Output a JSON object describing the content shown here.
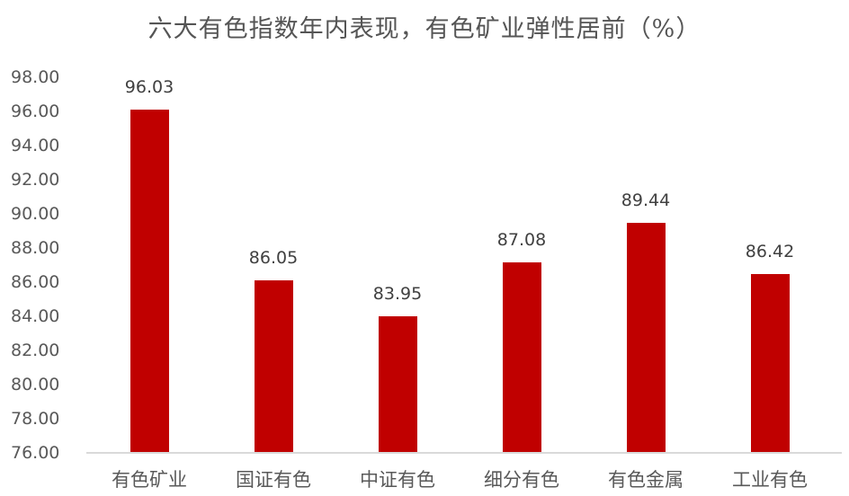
{
  "chart_data": {
    "type": "bar",
    "title": "六大有色指数年内表现，有色矿业弹性居前（%）",
    "xlabel": "",
    "ylabel": "",
    "categories": [
      "有色矿业",
      "国证有色",
      "中证有色",
      "细分有色",
      "有色金属",
      "工业有色"
    ],
    "values": [
      96.03,
      86.05,
      83.95,
      87.08,
      89.44,
      86.42
    ],
    "value_labels": [
      "96.03",
      "86.05",
      "83.95",
      "87.08",
      "89.44",
      "86.42"
    ],
    "ylim": [
      76,
      98
    ],
    "yticks": [
      "98.00",
      "96.00",
      "94.00",
      "92.00",
      "90.00",
      "88.00",
      "86.00",
      "84.00",
      "82.00",
      "80.00",
      "78.00",
      "76.00"
    ],
    "grid": false,
    "legend": "none",
    "bar_color": "#c00000"
  }
}
